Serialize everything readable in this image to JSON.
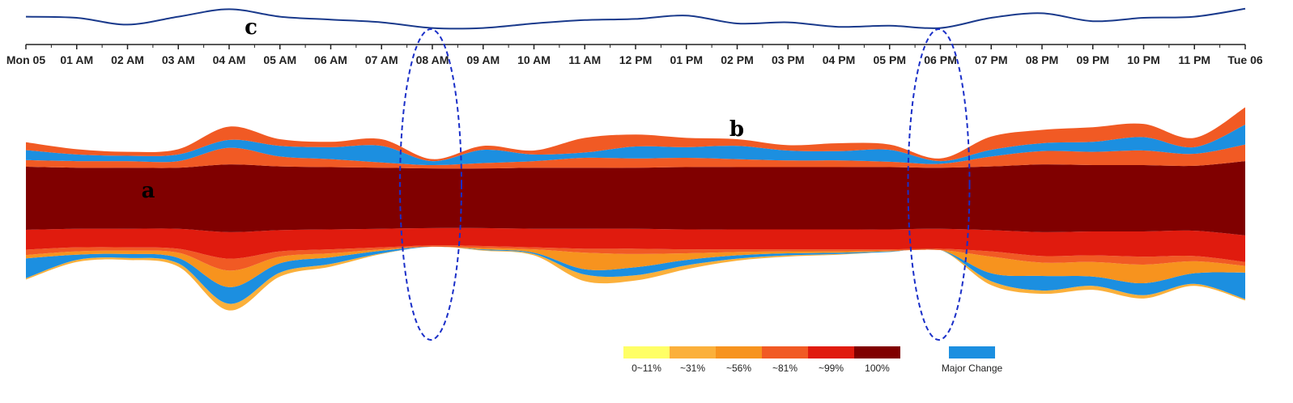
{
  "chart_data": {
    "type": "area",
    "x_ticks": [
      "Mon 05",
      "01 AM",
      "02 AM",
      "03 AM",
      "04 AM",
      "05 AM",
      "06 AM",
      "07 AM",
      "08 AM",
      "09 AM",
      "10 AM",
      "11 AM",
      "12 PM",
      "01 PM",
      "02 PM",
      "03 PM",
      "04 PM",
      "05 PM",
      "06 PM",
      "07 PM",
      "08 PM",
      "09 PM",
      "10 PM",
      "11 PM",
      "Tue 06"
    ],
    "legend": {
      "levels": [
        {
          "label": "0~11%",
          "color": "#ffff66"
        },
        {
          "label": "~31%",
          "color": "#fbb03b"
        },
        {
          "label": "~56%",
          "color": "#f7931e"
        },
        {
          "label": "~81%",
          "color": "#f15a24"
        },
        {
          "label": "~99%",
          "color": "#e01b0e"
        },
        {
          "label": "100%",
          "color": "#800000"
        }
      ],
      "change": {
        "label": "Major Change",
        "color": "#1c8fe0"
      }
    },
    "annotations": [
      "a",
      "b",
      "c"
    ],
    "highlight_ticks": [
      "08 AM",
      "06 PM"
    ],
    "line_series": [
      0.55,
      0.5,
      0.2,
      0.55,
      0.88,
      0.55,
      0.42,
      0.3,
      0.05,
      0.05,
      0.25,
      0.4,
      0.45,
      0.6,
      0.25,
      0.3,
      0.1,
      0.15,
      0.05,
      0.5,
      0.7,
      0.35,
      0.5,
      0.55,
      0.9
    ],
    "layers": [
      {
        "name": "~31%",
        "color": "#fbb03b",
        "values": [
          2,
          3,
          3,
          5,
          10,
          6,
          4,
          1,
          0,
          1,
          2,
          10,
          8,
          6,
          3,
          2,
          1,
          0,
          0,
          6,
          5,
          6,
          5,
          3,
          2
        ]
      },
      {
        "name": "Major Change",
        "color": "#1c8fe0",
        "values": [
          30,
          8,
          6,
          8,
          25,
          14,
          10,
          4,
          0,
          1,
          2,
          8,
          12,
          8,
          5,
          3,
          2,
          1,
          0,
          12,
          22,
          14,
          18,
          16,
          40
        ]
      },
      {
        "name": "~56%",
        "color": "#f7931e",
        "values": [
          5,
          5,
          5,
          8,
          25,
          10,
          6,
          2,
          0,
          2,
          5,
          25,
          20,
          10,
          5,
          3,
          2,
          1,
          0,
          25,
          20,
          22,
          28,
          18,
          10
        ]
      },
      {
        "name": "~81%",
        "color": "#f15a24",
        "values": [
          8,
          6,
          5,
          6,
          18,
          8,
          6,
          3,
          2,
          3,
          3,
          6,
          8,
          6,
          4,
          3,
          3,
          2,
          2,
          8,
          10,
          10,
          12,
          8,
          6
        ]
      },
      {
        "name": "~99%",
        "color": "#e01b0e",
        "values": [
          30,
          28,
          28,
          30,
          40,
          32,
          30,
          28,
          26,
          27,
          28,
          30,
          30,
          30,
          30,
          30,
          30,
          30,
          30,
          32,
          36,
          36,
          38,
          38,
          40
        ]
      },
      {
        "name": "100%",
        "color": "#800000",
        "values": [
          95,
          92,
          92,
          92,
          102,
          96,
          94,
          92,
          90,
          90,
          92,
          92,
          92,
          94,
          94,
          94,
          94,
          94,
          92,
          96,
          102,
          100,
          100,
          98,
          112
        ]
      },
      {
        "name": "~81%",
        "color": "#f15a24",
        "values": [
          10,
          10,
          10,
          10,
          25,
          15,
          12,
          8,
          5,
          8,
          10,
          15,
          14,
          14,
          12,
          10,
          10,
          8,
          6,
          15,
          20,
          20,
          22,
          18,
          25
        ]
      },
      {
        "name": "Major Change",
        "color": "#1c8fe0",
        "values": [
          15,
          10,
          8,
          10,
          12,
          16,
          18,
          25,
          6,
          20,
          10,
          8,
          18,
          16,
          20,
          15,
          14,
          18,
          4,
          10,
          12,
          15,
          20,
          10,
          30
        ]
      },
      {
        "name": "~81%",
        "color": "#f15a24",
        "values": [
          12,
          8,
          6,
          8,
          20,
          10,
          8,
          10,
          3,
          6,
          6,
          22,
          18,
          14,
          10,
          8,
          12,
          8,
          4,
          20,
          20,
          22,
          20,
          14,
          26
        ]
      }
    ]
  }
}
